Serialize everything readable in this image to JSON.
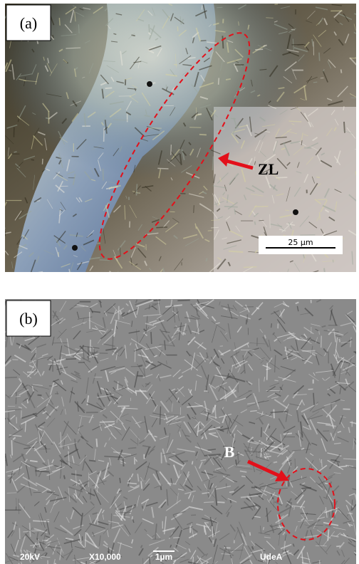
{
  "panels": [
    {
      "label": "(a)",
      "annotation": "ZL",
      "scale_bar": "25 µm"
    },
    {
      "label": "(b)",
      "annotation": "B",
      "footer": [
        "20kV",
        "X10,000",
        "1µm",
        "UdeA"
      ]
    }
  ]
}
